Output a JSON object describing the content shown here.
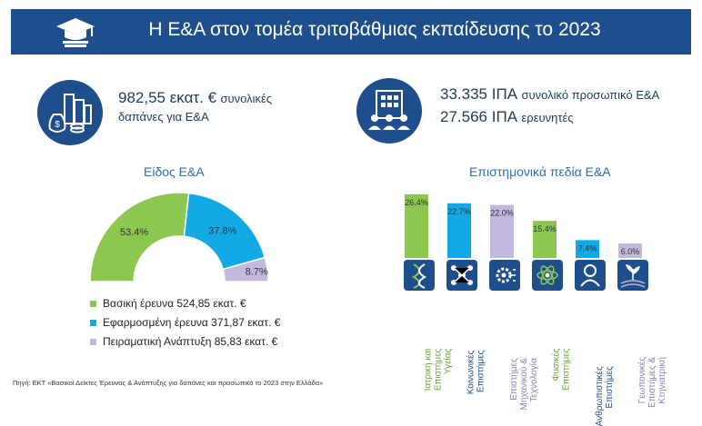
{
  "header": {
    "title": "Η Ε&Α στον τομέα τριτοβάθμιας εκπαίδευσης το 2023",
    "icon": "graduation-cap-icon"
  },
  "stats": {
    "expenditure": {
      "value": "982,55 εκατ. €",
      "label_line1": "συνολικές",
      "label_line2": "δαπάνες για Ε&Α",
      "icon": "money-bag-buildings-icon"
    },
    "personnel": {
      "value": "33.335 ΙΠΑ",
      "label": "συνολικό προσωπικό Ε&Α",
      "icon": "building-people-icon"
    },
    "researchers": {
      "value": "27.566 ΙΠΑ",
      "label": "ερευνητές"
    }
  },
  "colors": {
    "brand": "#1f4e8c",
    "green": "#8cc750",
    "blue": "#13a9e6",
    "lavender": "#c2b8de",
    "text": "#1d3a5c"
  },
  "chart_data": [
    {
      "type": "pie",
      "title": "Είδος Ε&Α",
      "variant": "semi-donut",
      "categories": [
        "Βασική έρευνα",
        "Εφαρμοσμένη έρευνα",
        "Πειραματική Ανάπτυξη"
      ],
      "values": [
        53.4,
        37.8,
        8.7
      ],
      "value_labels": [
        "53.4%",
        "37.8%",
        "8.7%"
      ],
      "amounts": [
        524.85,
        371.87,
        85.83
      ],
      "legend": [
        "Βασική έρευνα 524,85 εκατ. €",
        "Εφαρμοσμένη έρευνα 371,87 εκατ. €",
        "Πειραματική Ανάπτυξη 85,83 εκατ. €"
      ],
      "colors": [
        "#8cc750",
        "#13a9e6",
        "#c2b8de"
      ]
    },
    {
      "type": "bar",
      "title": "Επιστημονικά πεδία Ε&Α",
      "categories": [
        "Ιατρική και Επιστήμες Υγείας",
        "Κοινωνικές Επιστήμες",
        "Επιστήμες Μηχανικού & Τεχνολογία",
        "Φυσικές Επιστήμες",
        "Ανθρωπιστικές Επιστήμες",
        "Γεωπονικές Επιστήμες & Κτηνιατρική"
      ],
      "label_lines": [
        "Ιατρική και\nΕπιστήμες\nΥγείας",
        "Κοινωνικές\nΕπιστήμες",
        "Επιστήμες\nΜηχανικού &\nΤεχνολογία",
        "Φυσικές\nΕπιστήμες",
        "Ανθρωπιστικές\nΕπιστήμες",
        "Γεωπονικές\nΕπιστήμες &\nΚτηνιατρική"
      ],
      "values": [
        26.4,
        22.7,
        22.0,
        15.4,
        7.4,
        6.0
      ],
      "value_labels": [
        "26.4%",
        "22.7%",
        "22.0%",
        "15.4%",
        "7.4%",
        "6.0%"
      ],
      "colors": [
        "#8cc750",
        "#13a9e6",
        "#c2b8de",
        "#8cc750",
        "#13a9e6",
        "#c2b8de"
      ],
      "icons": [
        "dna-icon",
        "network-icon",
        "gear-circuit-icon",
        "atom-icon",
        "head-person-icon",
        "plant-field-icon"
      ],
      "ylim": [
        0,
        26.4
      ]
    }
  ],
  "source": "Πηγή: ΕΚΤ «Βασικοί Δείκτες Έρευνας & Ανάπτυξης για δαπάνες και προσωπικό το 2023 στην Ελλάδα»"
}
